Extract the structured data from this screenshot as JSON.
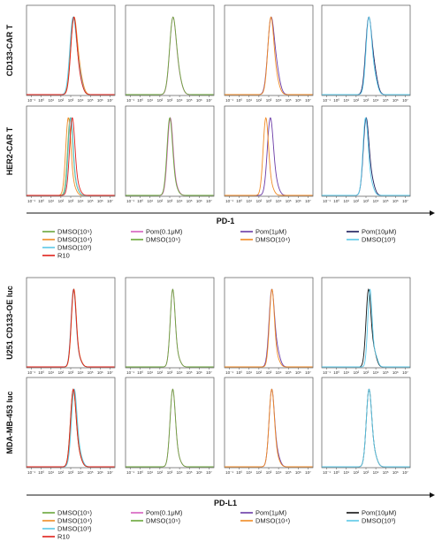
{
  "chart_data": {
    "type": "line",
    "x_scale": "log",
    "x_ticks": [
      "10⁻¹",
      "10⁰",
      "10¹",
      "10²",
      "10³",
      "10⁴",
      "10⁵",
      "10⁶",
      "10⁷"
    ],
    "blocks": [
      {
        "axis_label": "PD-1",
        "rows": [
          "CD133-CAR T",
          "HER2-CAR T"
        ],
        "legends": [
          [
            {
              "name": "DMSO(10⁵)",
              "color": "#6aa63a"
            },
            {
              "name": "DMSO(10⁴)",
              "color": "#f08a24"
            },
            {
              "name": "DMSO(10³)",
              "color": "#5bc8e8"
            },
            {
              "name": "R10",
              "color": "#e0201a"
            }
          ],
          [
            {
              "name": "Pom(0.1μM)",
              "color": "#d65fc0"
            },
            {
              "name": "DMSO(10⁵)",
              "color": "#6aa63a"
            }
          ],
          [
            {
              "name": "Pom(1μM)",
              "color": "#6a3aa6"
            },
            {
              "name": "DMSO(10⁴)",
              "color": "#f08a24"
            }
          ],
          [
            {
              "name": "Pom(10μM)",
              "color": "#1a1a5a"
            },
            {
              "name": "DMSO(10³)",
              "color": "#5bc8e8"
            }
          ]
        ],
        "panels": [
          [
            {
              "peaks": [
                3.25,
                3.3,
                3.2,
                3.3
              ],
              "widths": [
                0.3,
                0.32,
                0.31,
                0.3
              ],
              "shoulders": [
                0.3,
                0.3,
                0.35,
                0.2
              ]
            },
            {
              "peaks": [
                3.3,
                3.3
              ],
              "widths": [
                0.32,
                0.33
              ],
              "shoulders": [
                0.25,
                0.25
              ]
            },
            {
              "peaks": [
                3.2,
                3.2
              ],
              "widths": [
                0.32,
                0.3
              ],
              "shoulders": [
                0.35,
                0.2
              ]
            },
            {
              "peaks": [
                3.25,
                3.28
              ],
              "widths": [
                0.3,
                0.28
              ],
              "shoulders": [
                0.35,
                0.25
              ]
            }
          ],
          [
            {
              "peaks": [
                2.95,
                2.75,
                3.0,
                3.15
              ],
              "widths": [
                0.26,
                0.26,
                0.25,
                0.27
              ],
              "shoulders": [
                0.1,
                0.1,
                0.1,
                0.1
              ]
            },
            {
              "peaks": [
                3.05,
                3.0
              ],
              "widths": [
                0.28,
                0.28
              ],
              "shoulders": [
                0.1,
                0.1
              ]
            },
            {
              "peaks": [
                3.15,
                2.7
              ],
              "widths": [
                0.3,
                0.27
              ],
              "shoulders": [
                0.15,
                0.1
              ]
            },
            {
              "peaks": [
                3.0,
                2.95
              ],
              "widths": [
                0.28,
                0.26
              ],
              "shoulders": [
                0.2,
                0.15
              ]
            }
          ]
        ]
      },
      {
        "axis_label": "PD-L1",
        "rows": [
          "U251 CD133-OE luc",
          "MDA-MB-453 luc"
        ],
        "legends": [
          [
            {
              "name": "DMSO(10⁵)",
              "color": "#6aa63a"
            },
            {
              "name": "DMSO(10⁴)",
              "color": "#f08a24"
            },
            {
              "name": "DMSO(10³)",
              "color": "#5bc8e8"
            },
            {
              "name": "R10",
              "color": "#e0201a"
            }
          ],
          [
            {
              "name": "Pom(0.1μM)",
              "color": "#d65fc0"
            },
            {
              "name": "DMSO(10⁵)",
              "color": "#6aa63a"
            }
          ],
          [
            {
              "name": "Pom(1μM)",
              "color": "#6a3aa6"
            },
            {
              "name": "DMSO(10⁴)",
              "color": "#f08a24"
            }
          ],
          [
            {
              "name": "Pom(10μM)",
              "color": "#111111"
            },
            {
              "name": "DMSO(10³)",
              "color": "#5bc8e8"
            }
          ]
        ],
        "panels": [
          [
            {
              "peaks": [
                3.3,
                3.32,
                3.28,
                3.3
              ],
              "widths": [
                0.25,
                0.25,
                0.25,
                0.25
              ],
              "shoulders": [
                0.1,
                0.1,
                0.1,
                0.1
              ]
            },
            {
              "peaks": [
                3.3,
                3.3
              ],
              "widths": [
                0.25,
                0.25
              ],
              "shoulders": [
                0.1,
                0.1
              ]
            },
            {
              "peaks": [
                3.3,
                3.32
              ],
              "widths": [
                0.27,
                0.25
              ],
              "shoulders": [
                0.2,
                0.1
              ]
            },
            {
              "peaks": [
                3.25,
                3.4
              ],
              "widths": [
                0.25,
                0.22
              ],
              "shoulders": [
                0.2,
                0.15
              ]
            }
          ],
          [
            {
              "peaks": [
                3.25,
                3.3,
                3.35,
                3.25
              ],
              "widths": [
                0.28,
                0.28,
                0.28,
                0.28
              ],
              "shoulders": [
                0.15,
                0.15,
                0.15,
                0.15
              ]
            },
            {
              "peaks": [
                3.3,
                3.3
              ],
              "widths": [
                0.27,
                0.27
              ],
              "shoulders": [
                0.1,
                0.1
              ]
            },
            {
              "peaks": [
                3.3,
                3.3
              ],
              "widths": [
                0.27,
                0.27
              ],
              "shoulders": [
                0.15,
                0.1
              ]
            },
            {
              "peaks": [
                3.3,
                3.3
              ],
              "widths": [
                0.27,
                0.27
              ],
              "shoulders": [
                0.15,
                0.15
              ]
            }
          ]
        ]
      }
    ]
  }
}
